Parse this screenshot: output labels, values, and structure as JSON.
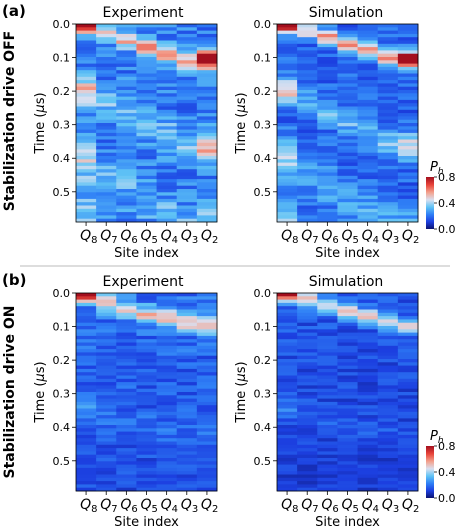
{
  "figure": {
    "panels": [
      {
        "label": "(a)",
        "row_label": "Stabilization drive OFF",
        "subplots": [
          {
            "title": "Experiment"
          },
          {
            "title": "Simulation"
          }
        ]
      },
      {
        "label": "(b)",
        "row_label": "Stabilization drive ON",
        "subplots": [
          {
            "title": "Experiment"
          },
          {
            "title": "Simulation"
          }
        ]
      }
    ],
    "colorbar": {
      "title": "Pₕ",
      "title_base": "P",
      "title_sub": "h",
      "ticks": [
        "0.8",
        "0.4",
        "0.0"
      ]
    }
  },
  "colors": {
    "colormap": [
      "#0b1270",
      "#1c3fe0",
      "#2f7ff6",
      "#5fc3f5",
      "#d9dff0",
      "#f3a38f",
      "#e8443a",
      "#a30f1e"
    ],
    "divider": "#bbbbbb"
  },
  "chart_data": [
    {
      "type": "heatmap",
      "panel": "(a)",
      "title": "Experiment",
      "xlabel": "Site index",
      "ylabel": "Time (μs)",
      "ylabel_base": "Time (",
      "ylabel_mu": "μ",
      "ylabel_tail": "s)",
      "x": [
        "Q8",
        "Q7",
        "Q6",
        "Q5",
        "Q4",
        "Q3",
        "Q2"
      ],
      "x_base": [
        "Q",
        "Q",
        "Q",
        "Q",
        "Q",
        "Q",
        "Q"
      ],
      "x_sub": [
        "8",
        "7",
        "6",
        "5",
        "4",
        "3",
        "2"
      ],
      "yticks": [
        "0.0",
        "0.1",
        "0.2",
        "0.3",
        "0.4",
        "0.5"
      ],
      "ylim": [
        0.0,
        0.59
      ],
      "clim": [
        0.0,
        0.8
      ],
      "wave_centers": [
        0.0,
        0.03,
        0.05,
        0.07,
        0.09,
        0.115,
        0.105
      ],
      "wave_peaks": [
        0.75,
        0.3,
        0.3,
        0.35,
        0.35,
        0.4,
        0.8
      ],
      "wave_width": 0.018,
      "stabilized": false,
      "background": 0.22
    },
    {
      "type": "heatmap",
      "panel": "(a)",
      "title": "Simulation",
      "xlabel": "Site index",
      "ylabel": "Time (μs)",
      "ylabel_base": "Time (",
      "ylabel_mu": "μ",
      "ylabel_tail": "s)",
      "x": [
        "Q8",
        "Q7",
        "Q6",
        "Q5",
        "Q4",
        "Q3",
        "Q2"
      ],
      "x_base": [
        "Q",
        "Q",
        "Q",
        "Q",
        "Q",
        "Q",
        "Q"
      ],
      "x_sub": [
        "8",
        "7",
        "6",
        "5",
        "4",
        "3",
        "2"
      ],
      "yticks": [
        "0.0",
        "0.1",
        "0.2",
        "0.3",
        "0.4",
        "0.5"
      ],
      "ylim": [
        0.0,
        0.59
      ],
      "clim": [
        0.0,
        0.8
      ],
      "wave_centers": [
        0.0,
        0.02,
        0.04,
        0.06,
        0.08,
        0.1,
        0.105
      ],
      "wave_peaks": [
        0.8,
        0.35,
        0.4,
        0.4,
        0.4,
        0.45,
        0.75
      ],
      "wave_width": 0.016,
      "stabilized": false,
      "background": 0.18
    },
    {
      "type": "heatmap",
      "panel": "(b)",
      "title": "Experiment",
      "xlabel": "Site index",
      "ylabel": "Time (μs)",
      "ylabel_base": "Time (",
      "ylabel_mu": "μ",
      "ylabel_tail": "s)",
      "x": [
        "Q8",
        "Q7",
        "Q6",
        "Q5",
        "Q4",
        "Q3",
        "Q2"
      ],
      "x_base": [
        "Q",
        "Q",
        "Q",
        "Q",
        "Q",
        "Q",
        "Q"
      ],
      "x_sub": [
        "8",
        "7",
        "6",
        "5",
        "4",
        "3",
        "2"
      ],
      "yticks": [
        "0.0",
        "0.1",
        "0.2",
        "0.3",
        "0.4",
        "0.5"
      ],
      "ylim": [
        0.0,
        0.59
      ],
      "clim": [
        0.0,
        0.8
      ],
      "wave_centers": [
        0.0,
        0.03,
        0.05,
        0.065,
        0.075,
        0.09,
        0.1
      ],
      "wave_peaks": [
        0.75,
        0.3,
        0.35,
        0.35,
        0.35,
        0.35,
        0.4
      ],
      "wave_width": 0.018,
      "stabilized": true,
      "background": 0.2
    },
    {
      "type": "heatmap",
      "panel": "(b)",
      "title": "Simulation",
      "xlabel": "Site index",
      "ylabel": "Time (μs)",
      "ylabel_base": "Time (",
      "ylabel_mu": "μ",
      "ylabel_tail": "s)",
      "x": [
        "Q8",
        "Q7",
        "Q6",
        "Q5",
        "Q4",
        "Q3",
        "Q2"
      ],
      "x_base": [
        "Q",
        "Q",
        "Q",
        "Q",
        "Q",
        "Q",
        "Q"
      ],
      "x_sub": [
        "8",
        "7",
        "6",
        "5",
        "4",
        "3",
        "2"
      ],
      "yticks": [
        "0.0",
        "0.1",
        "0.2",
        "0.3",
        "0.4",
        "0.5"
      ],
      "ylim": [
        0.0,
        0.59
      ],
      "clim": [
        0.0,
        0.8
      ],
      "wave_centers": [
        0.0,
        0.02,
        0.04,
        0.055,
        0.07,
        0.085,
        0.1
      ],
      "wave_peaks": [
        0.8,
        0.35,
        0.35,
        0.35,
        0.35,
        0.35,
        0.35
      ],
      "wave_width": 0.016,
      "stabilized": true,
      "background": 0.16
    }
  ]
}
